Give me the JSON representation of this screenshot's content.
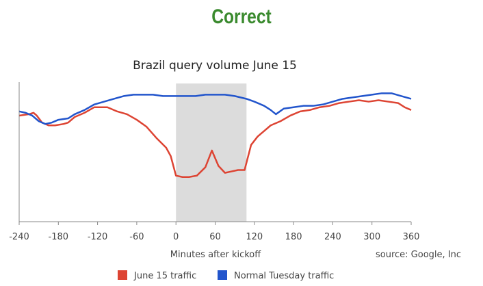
{
  "heading": "Correct",
  "chart_data": {
    "type": "line",
    "title": "Brazil query volume June 15",
    "xlabel": "Minutes after kickoff",
    "ylabel": "",
    "source": "source: Google, Inc",
    "xlim": [
      -240,
      360
    ],
    "ylim": [
      0,
      100
    ],
    "xticks": [
      -240,
      -180,
      -120,
      -60,
      0,
      60,
      120,
      180,
      240,
      300,
      360
    ],
    "grid": false,
    "legend_position": "bottom",
    "shaded_band": {
      "x": [
        0,
        108
      ],
      "color": "#dcdcdc"
    },
    "series": [
      {
        "name": "June 15 traffic",
        "color": "#dd4433",
        "points": [
          [
            -240,
            76
          ],
          [
            -225,
            77
          ],
          [
            -218,
            78
          ],
          [
            -213,
            76
          ],
          [
            -205,
            71
          ],
          [
            -195,
            69
          ],
          [
            -185,
            69
          ],
          [
            -172,
            70
          ],
          [
            -165,
            71
          ],
          [
            -155,
            75
          ],
          [
            -140,
            78
          ],
          [
            -125,
            82
          ],
          [
            -115,
            82
          ],
          [
            -105,
            82
          ],
          [
            -90,
            79
          ],
          [
            -75,
            77
          ],
          [
            -60,
            73
          ],
          [
            -45,
            68
          ],
          [
            -30,
            60
          ],
          [
            -15,
            53
          ],
          [
            -8,
            47
          ],
          [
            0,
            33
          ],
          [
            10,
            32
          ],
          [
            20,
            32
          ],
          [
            32,
            33
          ],
          [
            45,
            39
          ],
          [
            55,
            51
          ],
          [
            65,
            40
          ],
          [
            75,
            35
          ],
          [
            85,
            36
          ],
          [
            95,
            37
          ],
          [
            105,
            37
          ],
          [
            115,
            55
          ],
          [
            125,
            61
          ],
          [
            135,
            65
          ],
          [
            145,
            69
          ],
          [
            160,
            72
          ],
          [
            175,
            76
          ],
          [
            190,
            79
          ],
          [
            205,
            80
          ],
          [
            220,
            82
          ],
          [
            235,
            83
          ],
          [
            250,
            85
          ],
          [
            265,
            86
          ],
          [
            280,
            87
          ],
          [
            295,
            86
          ],
          [
            310,
            87
          ],
          [
            325,
            86
          ],
          [
            340,
            85
          ],
          [
            350,
            82
          ],
          [
            360,
            80
          ]
        ]
      },
      {
        "name": "Normal Tuesday traffic",
        "color": "#2255cc",
        "points": [
          [
            -240,
            79
          ],
          [
            -230,
            78
          ],
          [
            -220,
            76
          ],
          [
            -210,
            72
          ],
          [
            -200,
            70
          ],
          [
            -190,
            71
          ],
          [
            -180,
            73
          ],
          [
            -165,
            74
          ],
          [
            -155,
            77
          ],
          [
            -140,
            80
          ],
          [
            -125,
            84
          ],
          [
            -110,
            86
          ],
          [
            -95,
            88
          ],
          [
            -80,
            90
          ],
          [
            -65,
            91
          ],
          [
            -50,
            91
          ],
          [
            -35,
            91
          ],
          [
            -20,
            90
          ],
          [
            0,
            90
          ],
          [
            15,
            90
          ],
          [
            30,
            90
          ],
          [
            45,
            91
          ],
          [
            60,
            91
          ],
          [
            75,
            91
          ],
          [
            90,
            90
          ],
          [
            108,
            88
          ],
          [
            120,
            86
          ],
          [
            135,
            83
          ],
          [
            145,
            80
          ],
          [
            153,
            77
          ],
          [
            165,
            81
          ],
          [
            180,
            82
          ],
          [
            195,
            83
          ],
          [
            210,
            83
          ],
          [
            225,
            84
          ],
          [
            240,
            86
          ],
          [
            255,
            88
          ],
          [
            270,
            89
          ],
          [
            285,
            90
          ],
          [
            300,
            91
          ],
          [
            315,
            92
          ],
          [
            330,
            92
          ],
          [
            345,
            90
          ],
          [
            360,
            88
          ]
        ]
      }
    ]
  }
}
